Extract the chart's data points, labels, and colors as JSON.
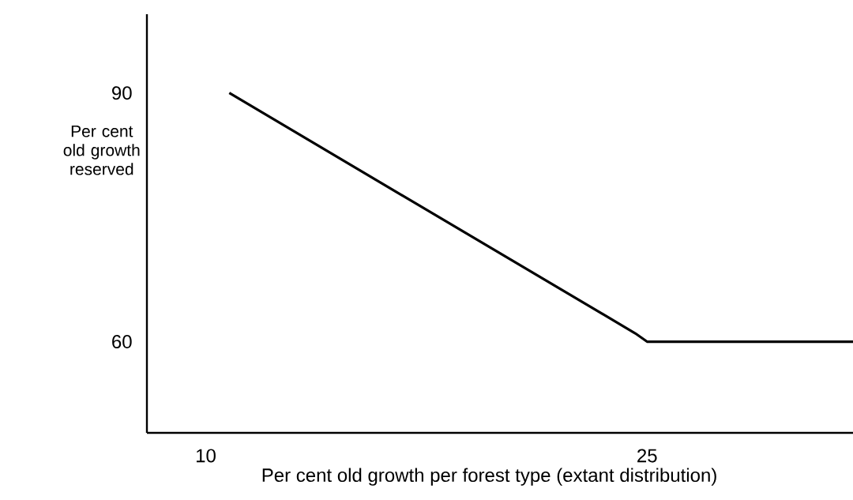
{
  "chart_data": {
    "type": "line",
    "xlabel": "Per cent  old growth per forest type (extant distribution)",
    "ylabel": "Per cent old growth reserved",
    "x": [
      10.8,
      24.6,
      25,
      32
    ],
    "series": [
      {
        "color": "#000000",
        "values": [
          90,
          61,
          60,
          60
        ]
      }
    ],
    "xlim": [
      8,
      32
    ],
    "ylim": [
      49,
      99.5
    ],
    "xticks": [
      10,
      25
    ],
    "yticks": [
      60,
      90
    ],
    "grid": false,
    "marker": "none"
  }
}
